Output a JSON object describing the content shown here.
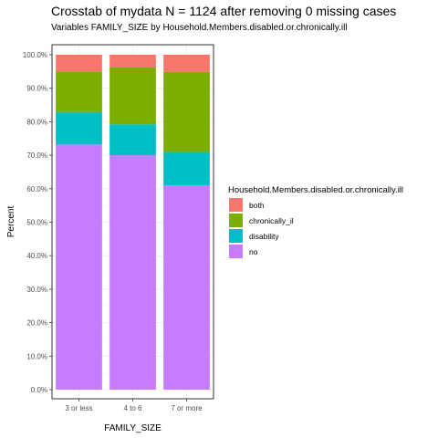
{
  "title": "Crosstab of mydata N = 1124 after removing 0 missing cases",
  "subtitle": "Variables FAMILY_SIZE by Household.Members.disabled.or.chronically.ill",
  "chart_data": {
    "type": "bar",
    "stacked": true,
    "title": "Crosstab of mydata N = 1124 after removing 0 missing cases",
    "subtitle": "Variables FAMILY_SIZE by Household.Members.disabled.or.chronically.ill",
    "xlabel": "FAMILY_SIZE",
    "ylabel": "Percent",
    "ylim": [
      0,
      100
    ],
    "y_ticks": [
      "0.0%",
      "10.0%",
      "20.0%",
      "30.0%",
      "40.0%",
      "50.0%",
      "60.0%",
      "70.0%",
      "80.0%",
      "90.0%",
      "100.0%"
    ],
    "categories": [
      "3 or less",
      "4 to 6",
      "7 or more"
    ],
    "series": [
      {
        "name": "no",
        "color": "#C77CFF",
        "values": [
          73.2,
          70.0,
          61.0
        ]
      },
      {
        "name": "disability",
        "color": "#00BFC4",
        "values": [
          9.7,
          9.2,
          10.0
        ]
      },
      {
        "name": "chronically_il",
        "color": "#7CAE00",
        "values": [
          12.1,
          17.0,
          23.9
        ]
      },
      {
        "name": "both",
        "color": "#F8766D",
        "values": [
          5.0,
          3.8,
          5.1
        ]
      }
    ],
    "legend": {
      "title": "Household.Members.disabled.or.chronically.ill",
      "position": "right",
      "order": [
        "both",
        "chronically_il",
        "disability",
        "no"
      ]
    },
    "grid": true,
    "theme": {
      "panel_background": "#ffffff",
      "panel_border": "#333333",
      "grid_color": "#ebebeb"
    }
  }
}
